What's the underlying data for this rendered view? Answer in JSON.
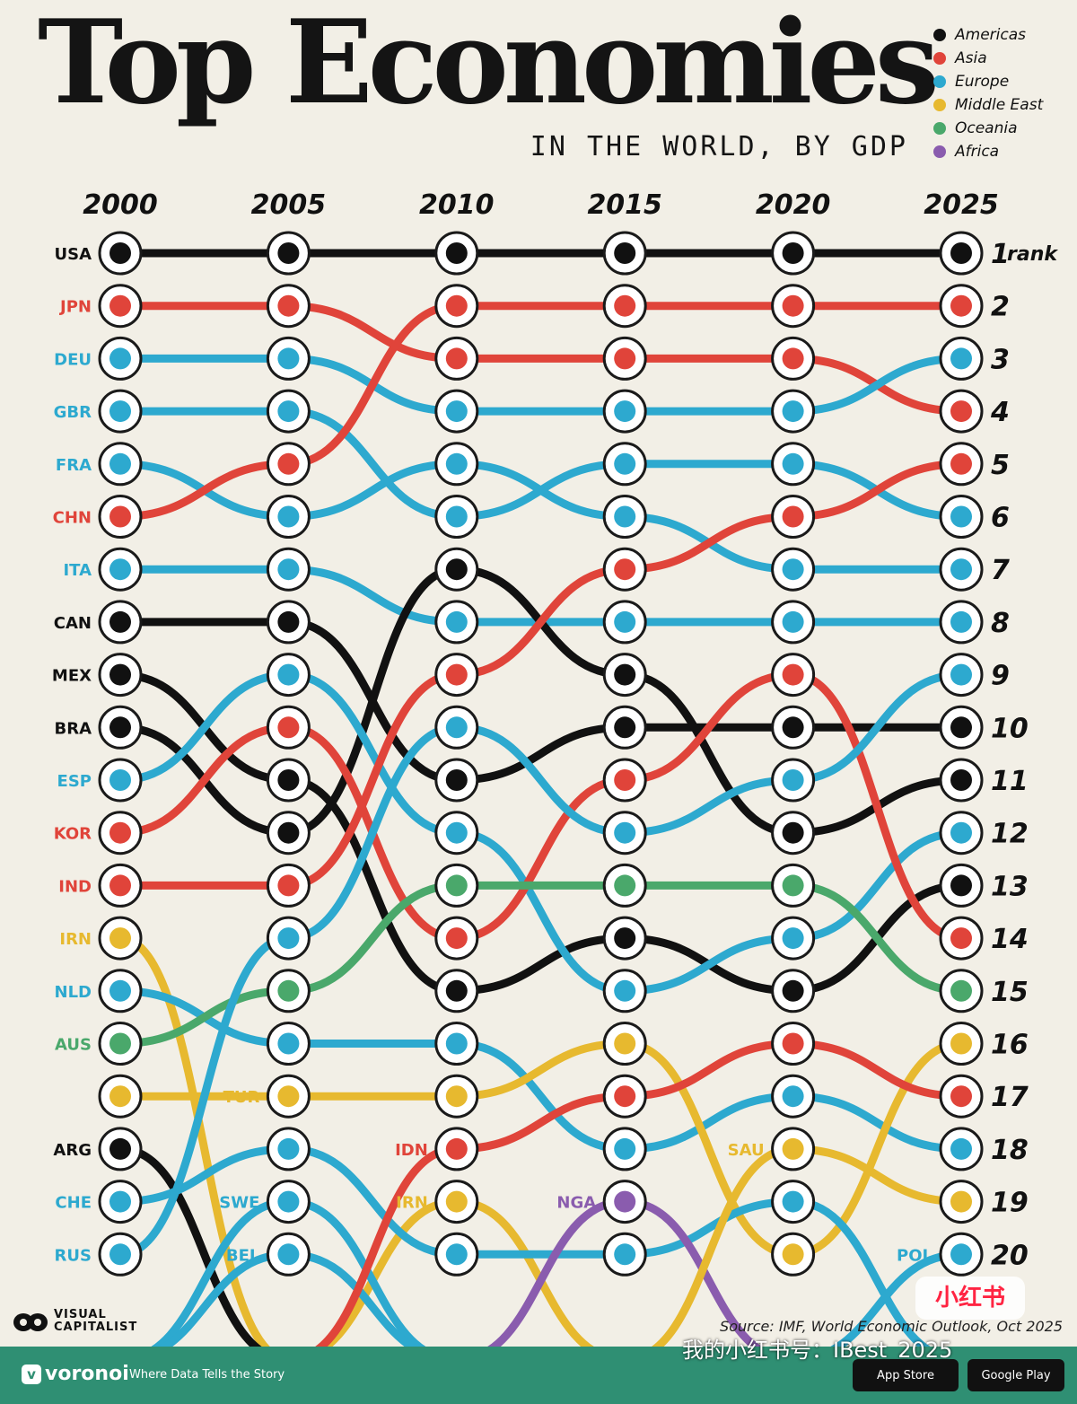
{
  "title": "Top Economies",
  "subtitle": "IN THE WORLD, BY GDP",
  "legend": [
    {
      "label": "Americas",
      "color": "#111111"
    },
    {
      "label": "Asia",
      "color": "#e0443a"
    },
    {
      "label": "Europe",
      "color": "#2da9cf"
    },
    {
      "label": "Middle East",
      "color": "#e7b92f"
    },
    {
      "label": "Oceania",
      "color": "#4aa86b"
    },
    {
      "label": "Africa",
      "color": "#8a5cae"
    }
  ],
  "rank_suffix": "rank",
  "source": "Source: IMF, World Economic Outlook, Oct 2025",
  "brand": {
    "vc_line1": "VISUAL",
    "vc_line2": "CAPITALIST",
    "footer_name": "voronoi",
    "footer_tag": "Where Data Tells the Story",
    "store1": "App Store",
    "store2": "Google Play",
    "handle": "我的小红书号：IBest_2025",
    "badge": "小红书"
  },
  "chart_data": {
    "type": "bump",
    "years": [
      "2000",
      "2005",
      "2010",
      "2015",
      "2020",
      "2025"
    ],
    "ranks": [
      1,
      2,
      3,
      4,
      5,
      6,
      7,
      8,
      9,
      10,
      11,
      12,
      13,
      14,
      15,
      16,
      17,
      18,
      19,
      20
    ],
    "countries": [
      {
        "code": "USA",
        "region": "Americas",
        "ranks": [
          1,
          1,
          1,
          1,
          1,
          1
        ]
      },
      {
        "code": "JPN",
        "region": "Asia",
        "ranks": [
          2,
          2,
          3,
          3,
          3,
          4
        ]
      },
      {
        "code": "DEU",
        "region": "Europe",
        "ranks": [
          3,
          3,
          4,
          4,
          4,
          3
        ]
      },
      {
        "code": "GBR",
        "region": "Europe",
        "ranks": [
          4,
          4,
          6,
          5,
          5,
          6
        ]
      },
      {
        "code": "FRA",
        "region": "Europe",
        "ranks": [
          5,
          6,
          5,
          6,
          7,
          7
        ]
      },
      {
        "code": "CHN",
        "region": "Asia",
        "ranks": [
          6,
          5,
          2,
          2,
          2,
          2
        ]
      },
      {
        "code": "ITA",
        "region": "Europe",
        "ranks": [
          7,
          7,
          8,
          8,
          8,
          8
        ]
      },
      {
        "code": "CAN",
        "region": "Americas",
        "ranks": [
          8,
          8,
          11,
          10,
          10,
          10
        ]
      },
      {
        "code": "MEX",
        "region": "Americas",
        "ranks": [
          9,
          11,
          15,
          14,
          15,
          13
        ]
      },
      {
        "code": "BRA",
        "region": "Americas",
        "ranks": [
          10,
          12,
          7,
          9,
          12,
          11
        ]
      },
      {
        "code": "ESP",
        "region": "Europe",
        "ranks": [
          11,
          9,
          12,
          15,
          14,
          12
        ]
      },
      {
        "code": "KOR",
        "region": "Asia",
        "ranks": [
          12,
          10,
          14,
          11,
          9,
          14
        ]
      },
      {
        "code": "IND",
        "region": "Asia",
        "ranks": [
          13,
          13,
          9,
          7,
          6,
          5
        ]
      },
      {
        "code": "IRN",
        "region": "Middle East",
        "ranks": [
          14,
          22,
          19,
          22,
          22,
          22
        ]
      },
      {
        "code": "NLD",
        "region": "Europe",
        "ranks": [
          15,
          16,
          16,
          18,
          17,
          18
        ]
      },
      {
        "code": "AUS",
        "region": "Oceania",
        "ranks": [
          16,
          15,
          13,
          13,
          13,
          15
        ]
      },
      {
        "code": "TUR",
        "region": "Middle East",
        "ranks": [
          17,
          17,
          17,
          16,
          20,
          16
        ]
      },
      {
        "code": "ARG",
        "region": "Americas",
        "ranks": [
          18,
          22,
          22,
          22,
          22,
          22
        ]
      },
      {
        "code": "CHE",
        "region": "Europe",
        "ranks": [
          19,
          18,
          20,
          20,
          19,
          22
        ]
      },
      {
        "code": "RUS",
        "region": "Europe",
        "ranks": [
          20,
          14,
          10,
          12,
          11,
          9
        ]
      },
      {
        "code": "SWE",
        "region": "Europe",
        "ranks": [
          22,
          19,
          22,
          22,
          22,
          22
        ]
      },
      {
        "code": "BEL",
        "region": "Europe",
        "ranks": [
          22,
          20,
          22,
          22,
          22,
          22
        ]
      },
      {
        "code": "IDN",
        "region": "Asia",
        "ranks": [
          22,
          22,
          18,
          17,
          16,
          17
        ]
      },
      {
        "code": "NGA",
        "region": "Africa",
        "ranks": [
          22,
          22,
          22,
          19,
          22,
          22
        ]
      },
      {
        "code": "SAU",
        "region": "Middle East",
        "ranks": [
          22,
          22,
          22,
          22,
          18,
          19
        ]
      },
      {
        "code": "POL",
        "region": "Europe",
        "ranks": [
          22,
          22,
          22,
          22,
          22,
          20
        ]
      }
    ],
    "labels": [
      {
        "text": "USA",
        "year": "2000",
        "rank": 1
      },
      {
        "text": "JPN",
        "year": "2000",
        "rank": 2
      },
      {
        "text": "DEU",
        "year": "2000",
        "rank": 3
      },
      {
        "text": "GBR",
        "year": "2000",
        "rank": 4
      },
      {
        "text": "FRA",
        "year": "2000",
        "rank": 5
      },
      {
        "text": "CHN",
        "year": "2000",
        "rank": 6
      },
      {
        "text": "ITA",
        "year": "2000",
        "rank": 7
      },
      {
        "text": "CAN",
        "year": "2000",
        "rank": 8
      },
      {
        "text": "MEX",
        "year": "2000",
        "rank": 9
      },
      {
        "text": "BRA",
        "year": "2000",
        "rank": 10
      },
      {
        "text": "ESP",
        "year": "2000",
        "rank": 11
      },
      {
        "text": "KOR",
        "year": "2000",
        "rank": 12
      },
      {
        "text": "IND",
        "year": "2000",
        "rank": 13
      },
      {
        "text": "IRN",
        "year": "2000",
        "rank": 14
      },
      {
        "text": "NLD",
        "year": "2000",
        "rank": 15
      },
      {
        "text": "AUS",
        "year": "2000",
        "rank": 16
      },
      {
        "text": "ARG",
        "year": "2000",
        "rank": 18
      },
      {
        "text": "CHE",
        "year": "2000",
        "rank": 19
      },
      {
        "text": "RUS",
        "year": "2000",
        "rank": 20
      },
      {
        "text": "TUR",
        "year": "2005",
        "rank": 17
      },
      {
        "text": "SWE",
        "year": "2005",
        "rank": 19
      },
      {
        "text": "BEL",
        "year": "2005",
        "rank": 20
      },
      {
        "text": "IDN",
        "year": "2010",
        "rank": 18
      },
      {
        "text": "IRN",
        "year": "2010",
        "rank": 19
      },
      {
        "text": "NGA",
        "year": "2015",
        "rank": 19
      },
      {
        "text": "SAU",
        "year": "2020",
        "rank": 18
      },
      {
        "text": "POL",
        "year": "2025",
        "rank": 20
      }
    ]
  }
}
